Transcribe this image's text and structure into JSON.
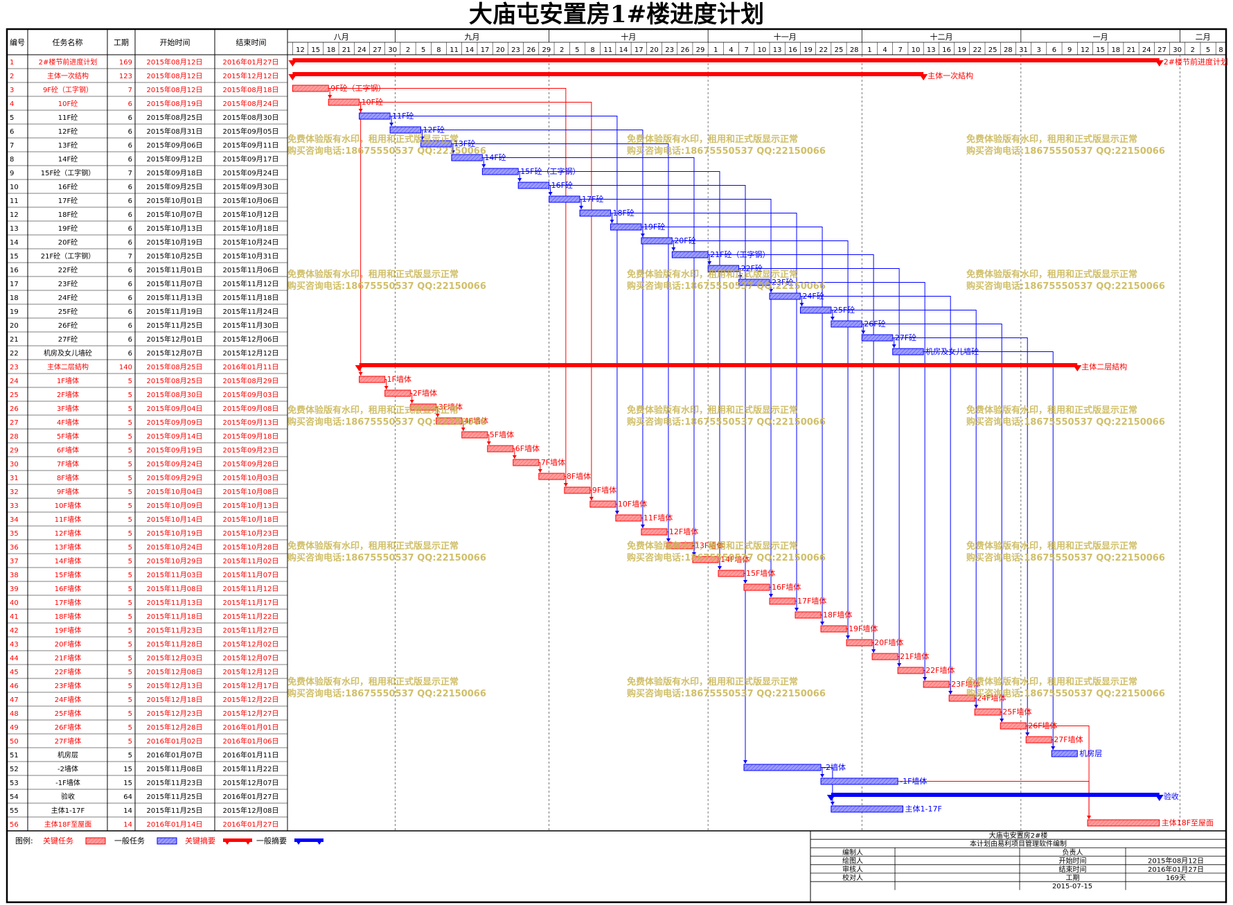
{
  "title": "大庙屯安置房1#楼进度计划",
  "columns": {
    "id": "编号",
    "name": "任务名称",
    "dur": "工期",
    "start": "开始时间",
    "end": "结束时间"
  },
  "months": [
    {
      "label": "八月",
      "days": [
        "12",
        "15",
        "18",
        "21",
        "24",
        "27",
        "30"
      ]
    },
    {
      "label": "九月",
      "days": [
        "2",
        "5",
        "8",
        "11",
        "14",
        "17",
        "20",
        "23",
        "26",
        "29"
      ]
    },
    {
      "label": "十月",
      "days": [
        "2",
        "5",
        "8",
        "11",
        "14",
        "17",
        "20",
        "23",
        "26",
        "29"
      ]
    },
    {
      "label": "十一月",
      "days": [
        "1",
        "4",
        "7",
        "10",
        "13",
        "16",
        "19",
        "22",
        "25",
        "28"
      ]
    },
    {
      "label": "十二月",
      "days": [
        "1",
        "4",
        "7",
        "10",
        "13",
        "16",
        "19",
        "22",
        "25",
        "28",
        "31"
      ]
    },
    {
      "label": "一月",
      "days": [
        "3",
        "6",
        "9",
        "12",
        "15",
        "18",
        "21",
        "24",
        "27",
        "30"
      ]
    },
    {
      "label": "二月",
      "days": [
        "2",
        "5",
        "8"
      ]
    }
  ],
  "watermark": {
    "line1": "免费体验版有水印，租用和正式版显示正常",
    "line2": "购买咨询电话:18675550537 QQ:22150066"
  },
  "colors": {
    "critical": "#ff0000",
    "normal": "#0000ff",
    "critical_fill": "#ff9c9c",
    "normal_fill": "#8c8cff",
    "watermark": "#c8b450"
  },
  "legend": {
    "label": "图例:",
    "items": [
      "关键任务",
      "一般任务",
      "关键摘要",
      "一般摘要"
    ]
  },
  "info_box": {
    "title": "大庙屯安置房2#楼",
    "subtitle": "本计划由易利项目管理软件编制",
    "rows": [
      [
        "编制人",
        "",
        "负责人",
        ""
      ],
      [
        "绘图人",
        "",
        "开始时间",
        "2015年08月12日"
      ],
      [
        "审核人",
        "",
        "结束时间",
        "2016年01月27日"
      ],
      [
        "校对人",
        "",
        "工期",
        "169天"
      ]
    ],
    "date": "2015-07-15"
  },
  "chart_data": {
    "type": "gantt",
    "x_start": "2015-08-11",
    "x_end": "2016-02-09",
    "tasks": [
      {
        "id": "1",
        "name": "2#楼节前进度计划",
        "dur": "169",
        "start": "2015年08月12日",
        "end": "2016年01月27日",
        "s": "2015-08-12",
        "e": "2016-01-27",
        "kind": "summary",
        "crit": true,
        "label": "2#楼节前进度计划"
      },
      {
        "id": "2",
        "name": "主体一次结构",
        "dur": "123",
        "start": "2015年08月12日",
        "end": "2015年12月12日",
        "s": "2015-08-12",
        "e": "2015-12-12",
        "kind": "summary",
        "crit": true,
        "label": "主体一次結构"
      },
      {
        "id": "3",
        "name": "9F砼（工字钢）",
        "dur": "7",
        "start": "2015年08月12日",
        "end": "2015年08月18日",
        "s": "2015-08-12",
        "e": "2015-08-18",
        "kind": "task",
        "crit": true,
        "label": "9F砼（工字钢）"
      },
      {
        "id": "4",
        "name": "10F砼",
        "dur": "6",
        "start": "2015年08月19日",
        "end": "2015年08月24日",
        "s": "2015-08-19",
        "e": "2015-08-24",
        "kind": "task",
        "crit": true,
        "label": "10F砼"
      },
      {
        "id": "5",
        "name": "11F砼",
        "dur": "6",
        "start": "2015年08月25日",
        "end": "2015年08月30日",
        "s": "2015-08-25",
        "e": "2015-08-30",
        "kind": "task",
        "crit": false,
        "label": "11F砼"
      },
      {
        "id": "6",
        "name": "12F砼",
        "dur": "6",
        "start": "2015年08月31日",
        "end": "2015年09月05日",
        "s": "2015-08-31",
        "e": "2015-09-05",
        "kind": "task",
        "crit": false,
        "label": "12F砼"
      },
      {
        "id": "7",
        "name": "13F砼",
        "dur": "6",
        "start": "2015年09月06日",
        "end": "2015年09月11日",
        "s": "2015-09-06",
        "e": "2015-09-11",
        "kind": "task",
        "crit": false,
        "label": "13F砼"
      },
      {
        "id": "8",
        "name": "14F砼",
        "dur": "6",
        "start": "2015年09月12日",
        "end": "2015年09月17日",
        "s": "2015-09-12",
        "e": "2015-09-17",
        "kind": "task",
        "crit": false,
        "label": "14F砼"
      },
      {
        "id": "9",
        "name": "15F砼（工字钢）",
        "dur": "7",
        "start": "2015年09月18日",
        "end": "2015年09月24日",
        "s": "2015-09-18",
        "e": "2015-09-24",
        "kind": "task",
        "crit": false,
        "label": "15F砼（工字钢）"
      },
      {
        "id": "10",
        "name": "16F砼",
        "dur": "6",
        "start": "2015年09月25日",
        "end": "2015年09月30日",
        "s": "2015-09-25",
        "e": "2015-09-30",
        "kind": "task",
        "crit": false,
        "label": "16F砼"
      },
      {
        "id": "11",
        "name": "17F砼",
        "dur": "6",
        "start": "2015年10月01日",
        "end": "2015年10月06日",
        "s": "2015-10-01",
        "e": "2015-10-06",
        "kind": "task",
        "crit": false,
        "label": "17F砼"
      },
      {
        "id": "12",
        "name": "18F砼",
        "dur": "6",
        "start": "2015年10月07日",
        "end": "2015年10月12日",
        "s": "2015-10-07",
        "e": "2015-10-12",
        "kind": "task",
        "crit": false,
        "label": "18F砼"
      },
      {
        "id": "13",
        "name": "19F砼",
        "dur": "6",
        "start": "2015年10月13日",
        "end": "2015年10月18日",
        "s": "2015-10-13",
        "e": "2015-10-18",
        "kind": "task",
        "crit": false,
        "label": "19F砼"
      },
      {
        "id": "14",
        "name": "20F砼",
        "dur": "6",
        "start": "2015年10月19日",
        "end": "2015年10月24日",
        "s": "2015-10-19",
        "e": "2015-10-24",
        "kind": "task",
        "crit": false,
        "label": "20F砼"
      },
      {
        "id": "15",
        "name": "21F砼（工字钢）",
        "dur": "7",
        "start": "2015年10月25日",
        "end": "2015年10月31日",
        "s": "2015-10-25",
        "e": "2015-10-31",
        "kind": "task",
        "crit": false,
        "label": "21F砼（工字钢）"
      },
      {
        "id": "16",
        "name": "22F砼",
        "dur": "6",
        "start": "2015年11月01日",
        "end": "2015年11月06日",
        "s": "2015-11-01",
        "e": "2015-11-06",
        "kind": "task",
        "crit": false,
        "label": "22F砼"
      },
      {
        "id": "17",
        "name": "23F砼",
        "dur": "6",
        "start": "2015年11月07日",
        "end": "2015年11月12日",
        "s": "2015-11-07",
        "e": "2015-11-12",
        "kind": "task",
        "crit": false,
        "label": "23F砼"
      },
      {
        "id": "18",
        "name": "24F砼",
        "dur": "6",
        "start": "2015年11月13日",
        "end": "2015年11月18日",
        "s": "2015-11-13",
        "e": "2015-11-18",
        "kind": "task",
        "crit": false,
        "label": "24F砼"
      },
      {
        "id": "19",
        "name": "25F砼",
        "dur": "6",
        "start": "2015年11月19日",
        "end": "2015年11月24日",
        "s": "2015-11-19",
        "e": "2015-11-24",
        "kind": "task",
        "crit": false,
        "label": "25F砼"
      },
      {
        "id": "20",
        "name": "26F砼",
        "dur": "6",
        "start": "2015年11月25日",
        "end": "2015年11月30日",
        "s": "2015-11-25",
        "e": "2015-11-30",
        "kind": "task",
        "crit": false,
        "label": "26F砼"
      },
      {
        "id": "21",
        "name": "27F砼",
        "dur": "6",
        "start": "2015年12月01日",
        "end": "2015年12月06日",
        "s": "2015-12-01",
        "e": "2015-12-06",
        "kind": "task",
        "crit": false,
        "label": "27F砼"
      },
      {
        "id": "22",
        "name": "机房及女儿墙砼",
        "dur": "6",
        "start": "2015年12月07日",
        "end": "2015年12月12日",
        "s": "2015-12-07",
        "e": "2015-12-12",
        "kind": "task",
        "crit": false,
        "label": "机房及女儿墙砼"
      },
      {
        "id": "23",
        "name": "主体二层結构",
        "dur": "140",
        "start": "2015年08月25日",
        "end": "2016年01月11日",
        "s": "2015-08-25",
        "e": "2016-01-11",
        "kind": "summary",
        "crit": true,
        "label": "主体二层結构"
      },
      {
        "id": "24",
        "name": "1F墙体",
        "dur": "5",
        "start": "2015年08月25日",
        "end": "2015年08月29日",
        "s": "2015-08-25",
        "e": "2015-08-29",
        "kind": "task",
        "crit": true,
        "label": "1F墙体"
      },
      {
        "id": "25",
        "name": "2F墙体",
        "dur": "5",
        "start": "2015年08月30日",
        "end": "2015年09月03日",
        "s": "2015-08-30",
        "e": "2015-09-03",
        "kind": "task",
        "crit": true,
        "label": "2F墙体"
      },
      {
        "id": "26",
        "name": "3F墙体",
        "dur": "5",
        "start": "2015年09月04日",
        "end": "2015年09月08日",
        "s": "2015-09-04",
        "e": "2015-09-08",
        "kind": "task",
        "crit": true,
        "label": "3F墙体"
      },
      {
        "id": "27",
        "name": "4F墙体",
        "dur": "5",
        "start": "2015年09月09日",
        "end": "2015年09月13日",
        "s": "2015-09-09",
        "e": "2015-09-13",
        "kind": "task",
        "crit": true,
        "label": "4F墙体"
      },
      {
        "id": "28",
        "name": "5F墙体",
        "dur": "5",
        "start": "2015年09月14日",
        "end": "2015年09月18日",
        "s": "2015-09-14",
        "e": "2015-09-18",
        "kind": "task",
        "crit": true,
        "label": "5F墙体"
      },
      {
        "id": "29",
        "name": "6F墙体",
        "dur": "5",
        "start": "2015年09月19日",
        "end": "2015年09月23日",
        "s": "2015-09-19",
        "e": "2015-09-23",
        "kind": "task",
        "crit": true,
        "label": "6F墙体"
      },
      {
        "id": "30",
        "name": "7F墙体",
        "dur": "5",
        "start": "2015年09月24日",
        "end": "2015年09月28日",
        "s": "2015-09-24",
        "e": "2015-09-28",
        "kind": "task",
        "crit": true,
        "label": "7F墙体"
      },
      {
        "id": "31",
        "name": "8F墙体",
        "dur": "5",
        "start": "2015年09月29日",
        "end": "2015年10月03日",
        "s": "2015-09-29",
        "e": "2015-10-03",
        "kind": "task",
        "crit": true,
        "label": "8F墙体"
      },
      {
        "id": "32",
        "name": "9F墙体",
        "dur": "5",
        "start": "2015年10月04日",
        "end": "2015年10月08日",
        "s": "2015-10-04",
        "e": "2015-10-08",
        "kind": "task",
        "crit": true,
        "label": "9F墙体"
      },
      {
        "id": "33",
        "name": "10F墙体",
        "dur": "5",
        "start": "2015年10月09日",
        "end": "2015年10月13日",
        "s": "2015-10-09",
        "e": "2015-10-13",
        "kind": "task",
        "crit": true,
        "label": "10F墙体"
      },
      {
        "id": "34",
        "name": "11F墙体",
        "dur": "5",
        "start": "2015年10月14日",
        "end": "2015年10月18日",
        "s": "2015-10-14",
        "e": "2015-10-18",
        "kind": "task",
        "crit": true,
        "label": "11F墙体"
      },
      {
        "id": "35",
        "name": "12F墙体",
        "dur": "5",
        "start": "2015年10月19日",
        "end": "2015年10月23日",
        "s": "2015-10-19",
        "e": "2015-10-23",
        "kind": "task",
        "crit": true,
        "label": "12F墙体"
      },
      {
        "id": "36",
        "name": "13F墙体",
        "dur": "5",
        "start": "2015年10月24日",
        "end": "2015年10月28日",
        "s": "2015-10-24",
        "e": "2015-10-28",
        "kind": "task",
        "crit": true,
        "label": "13F墙体"
      },
      {
        "id": "37",
        "name": "14F墙体",
        "dur": "5",
        "start": "2015年10月29日",
        "end": "2015年11月02日",
        "s": "2015-10-29",
        "e": "2015-11-02",
        "kind": "task",
        "crit": true,
        "label": "14F墙体"
      },
      {
        "id": "38",
        "name": "15F墙体",
        "dur": "5",
        "start": "2015年11月03日",
        "end": "2015年11月07日",
        "s": "2015-11-03",
        "e": "2015-11-07",
        "kind": "task",
        "crit": true,
        "label": "15F墙体"
      },
      {
        "id": "39",
        "name": "16F墙体",
        "dur": "5",
        "start": "2015年11月08日",
        "end": "2015年11月12日",
        "s": "2015-11-08",
        "e": "2015-11-12",
        "kind": "task",
        "crit": true,
        "label": "16F墙体"
      },
      {
        "id": "40",
        "name": "17F墙体",
        "dur": "5",
        "start": "2015年11月13日",
        "end": "2015年11月17日",
        "s": "2015-11-13",
        "e": "2015-11-17",
        "kind": "task",
        "crit": true,
        "label": "17F墙体"
      },
      {
        "id": "41",
        "name": "18F墙体",
        "dur": "5",
        "start": "2015年11月18日",
        "end": "2015年11月22日",
        "s": "2015-11-18",
        "e": "2015-11-22",
        "kind": "task",
        "crit": true,
        "label": "18F墙体"
      },
      {
        "id": "42",
        "name": "19F墙体",
        "dur": "5",
        "start": "2015年11月23日",
        "end": "2015年11月27日",
        "s": "2015-11-23",
        "e": "2015-11-27",
        "kind": "task",
        "crit": true,
        "label": "19F墙体"
      },
      {
        "id": "43",
        "name": "20F墙体",
        "dur": "5",
        "start": "2015年11月28日",
        "end": "2015年12月02日",
        "s": "2015-11-28",
        "e": "2015-12-02",
        "kind": "task",
        "crit": true,
        "label": "20F墙体"
      },
      {
        "id": "44",
        "name": "21F墙体",
        "dur": "5",
        "start": "2015年12月03日",
        "end": "2015年12月07日",
        "s": "2015-12-03",
        "e": "2015-12-07",
        "kind": "task",
        "crit": true,
        "label": "21F墙体"
      },
      {
        "id": "45",
        "name": "22F墙体",
        "dur": "5",
        "start": "2015年12月08日",
        "end": "2015年12月12日",
        "s": "2015-12-08",
        "e": "2015-12-12",
        "kind": "task",
        "crit": true,
        "label": "22F墙体"
      },
      {
        "id": "46",
        "name": "23F墙体",
        "dur": "5",
        "start": "2015年12月13日",
        "end": "2015年12月17日",
        "s": "2015-12-13",
        "e": "2015-12-17",
        "kind": "task",
        "crit": true,
        "label": "23F墙体"
      },
      {
        "id": "47",
        "name": "24F墙体",
        "dur": "5",
        "start": "2015年12月18日",
        "end": "2015年12月22日",
        "s": "2015-12-18",
        "e": "2015-12-22",
        "kind": "task",
        "crit": true,
        "label": "24F墙体"
      },
      {
        "id": "48",
        "name": "25F墙体",
        "dur": "5",
        "start": "2015年12月23日",
        "end": "2015年12月27日",
        "s": "2015-12-23",
        "e": "2015-12-27",
        "kind": "task",
        "crit": true,
        "label": "25F墙体"
      },
      {
        "id": "49",
        "name": "26F墙体",
        "dur": "5",
        "start": "2015年12月28日",
        "end": "2016年01月01日",
        "s": "2015-12-28",
        "e": "2016-01-01",
        "kind": "task",
        "crit": true,
        "label": "26F墙体"
      },
      {
        "id": "50",
        "name": "27F墙体",
        "dur": "5",
        "start": "2016年01月02日",
        "end": "2016年01月06日",
        "s": "2016-01-02",
        "e": "2016-01-06",
        "kind": "task",
        "crit": true,
        "label": "27F墙体"
      },
      {
        "id": "51",
        "name": "机房层",
        "dur": "5",
        "start": "2016年01月07日",
        "end": "2016年01月11日",
        "s": "2016-01-07",
        "e": "2016-01-11",
        "kind": "task",
        "crit": false,
        "label": "机房层"
      },
      {
        "id": "52",
        "name": "-2墙体",
        "dur": "15",
        "start": "2015年11月08日",
        "end": "2015年11月22日",
        "s": "2015-11-08",
        "e": "2015-11-22",
        "kind": "task",
        "crit": false,
        "label": "-2墙体"
      },
      {
        "id": "53",
        "name": "-1F墙体",
        "dur": "15",
        "start": "2015年11月23日",
        "end": "2015年12月07日",
        "s": "2015-11-23",
        "e": "2015-12-07",
        "kind": "task",
        "crit": false,
        "label": "-1F墙体"
      },
      {
        "id": "54",
        "name": "验收",
        "dur": "64",
        "start": "2015年11月25日",
        "end": "2016年01月27日",
        "s": "2015-11-25",
        "e": "2016-01-27",
        "kind": "summary",
        "crit": false,
        "label": "验收"
      },
      {
        "id": "55",
        "name": "主体1-17F",
        "dur": "14",
        "start": "2015年11月25日",
        "end": "2015年12月08日",
        "s": "2015-11-25",
        "e": "2015-12-08",
        "kind": "task",
        "crit": false,
        "label": "主体1-17F"
      },
      {
        "id": "56",
        "name": "主体18F至屋面",
        "dur": "14",
        "start": "2016年01月14日",
        "end": "2016年01月27日",
        "s": "2016-01-14",
        "e": "2016-01-27",
        "kind": "task",
        "crit": true,
        "label": "主体18F至屋面"
      }
    ]
  }
}
